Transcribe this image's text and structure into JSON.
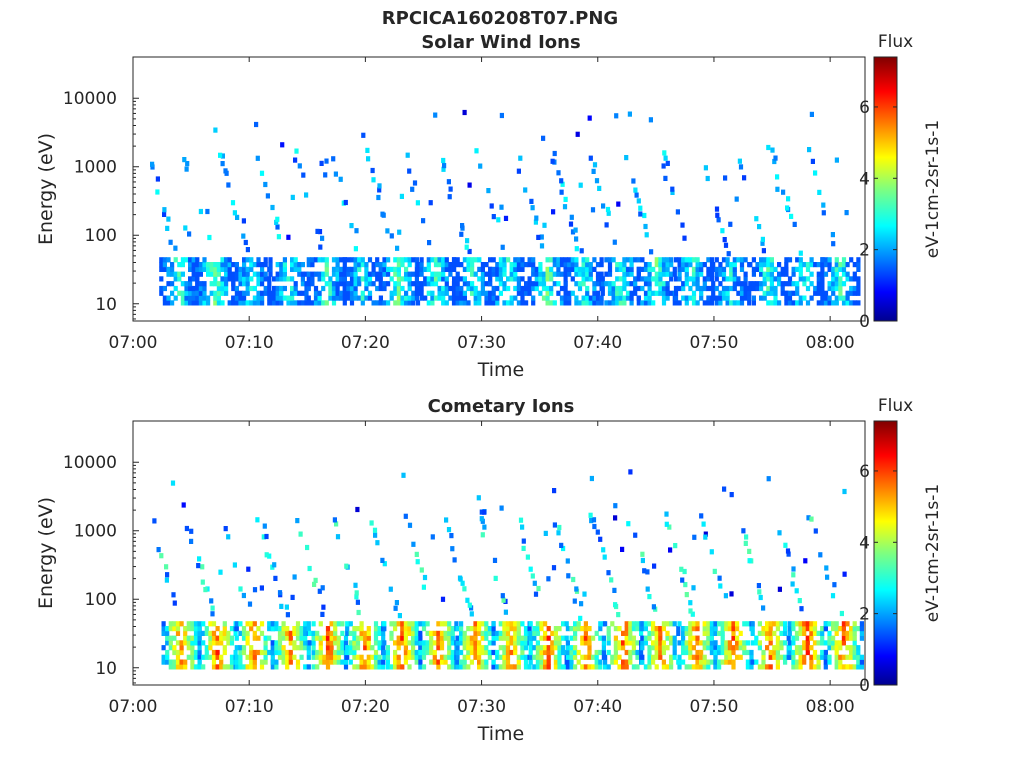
{
  "figure_title": "RPCICA160208T07.PNG",
  "chart_data": [
    {
      "type": "heatmap",
      "title": "Solar Wind Ions",
      "xlabel": "Time",
      "ylabel": "Energy (eV)",
      "x_ticks": [
        "07:00",
        "07:10",
        "07:20",
        "07:30",
        "07:40",
        "07:50",
        "08:00"
      ],
      "x_tick_minutes": [
        0,
        10,
        20,
        30,
        40,
        50,
        60
      ],
      "xlim_minutes": [
        0,
        63
      ],
      "y_scale": "log",
      "y_ticks": [
        "10",
        "100",
        "1000",
        "10000"
      ],
      "y_tick_values": [
        10,
        100,
        1000,
        10000
      ],
      "ylim": [
        5.6,
        40000
      ],
      "colorbar": {
        "title": "Flux",
        "label": "eV-1cm-2sr-1s-1",
        "ticks": [
          "0",
          "2",
          "4",
          "6"
        ],
        "tick_values": [
          0,
          2,
          4,
          6
        ],
        "range": [
          0,
          7.4
        ],
        "colormap": "jet"
      },
      "scans": [
        {
          "t": 3.8,
          "core": 3.0
        },
        {
          "t": 6.9,
          "core": 3.3
        },
        {
          "t": 10.0,
          "core": 2.6
        },
        {
          "t": 13.2,
          "core": 2.9
        },
        {
          "t": 16.5,
          "core": 3.1
        },
        {
          "t": 19.6,
          "core": 2.8
        },
        {
          "t": 22.7,
          "core": 3.4
        },
        {
          "t": 25.9,
          "core": 3.0
        },
        {
          "t": 29.0,
          "core": 2.7
        },
        {
          "t": 32.1,
          "core": 2.9
        },
        {
          "t": 35.5,
          "core": 3.3
        },
        {
          "t": 38.6,
          "core": 2.8
        },
        {
          "t": 41.8,
          "core": 3.0
        },
        {
          "t": 44.9,
          "core": 3.2
        },
        {
          "t": 48.1,
          "core": 2.9
        },
        {
          "t": 51.3,
          "core": 2.6
        },
        {
          "t": 54.5,
          "core": 3.0
        },
        {
          "t": 57.6,
          "core": 2.9
        },
        {
          "t": 60.7,
          "core": 3.0
        }
      ],
      "scatter_seed": 11
    },
    {
      "type": "heatmap",
      "title": "Cometary Ions",
      "xlabel": "Time",
      "ylabel": "Energy (eV)",
      "x_ticks": [
        "07:00",
        "07:10",
        "07:20",
        "07:30",
        "07:40",
        "07:50",
        "08:00"
      ],
      "x_tick_minutes": [
        0,
        10,
        20,
        30,
        40,
        50,
        60
      ],
      "xlim_minutes": [
        0,
        63
      ],
      "y_scale": "log",
      "y_ticks": [
        "10",
        "100",
        "1000",
        "10000"
      ],
      "y_tick_values": [
        10,
        100,
        1000,
        10000
      ],
      "ylim": [
        5.6,
        40000
      ],
      "colorbar": {
        "title": "Flux",
        "label": "eV-1cm-2sr-1s-1",
        "ticks": [
          "0",
          "2",
          "4",
          "6"
        ],
        "tick_values": [
          0,
          2,
          4,
          6
        ],
        "range": [
          0,
          7.4
        ],
        "colormap": "jet"
      },
      "scans": [
        {
          "t": 4.0,
          "core": 5.4
        },
        {
          "t": 7.1,
          "core": 5.7
        },
        {
          "t": 10.3,
          "core": 5.6
        },
        {
          "t": 13.4,
          "core": 5.5
        },
        {
          "t": 16.6,
          "core": 5.9
        },
        {
          "t": 19.8,
          "core": 5.6
        },
        {
          "t": 23.0,
          "core": 5.8
        },
        {
          "t": 26.1,
          "core": 5.7
        },
        {
          "t": 29.3,
          "core": 5.6
        },
        {
          "t": 32.4,
          "core": 5.5
        },
        {
          "t": 35.6,
          "core": 5.7
        },
        {
          "t": 38.8,
          "core": 5.6
        },
        {
          "t": 42.0,
          "core": 5.8
        },
        {
          "t": 45.2,
          "core": 5.5
        },
        {
          "t": 48.4,
          "core": 5.6
        },
        {
          "t": 51.5,
          "core": 5.7
        },
        {
          "t": 54.7,
          "core": 5.6
        },
        {
          "t": 57.9,
          "core": 5.9
        },
        {
          "t": 61.0,
          "core": 5.6
        }
      ],
      "scatter_seed": 29
    }
  ]
}
